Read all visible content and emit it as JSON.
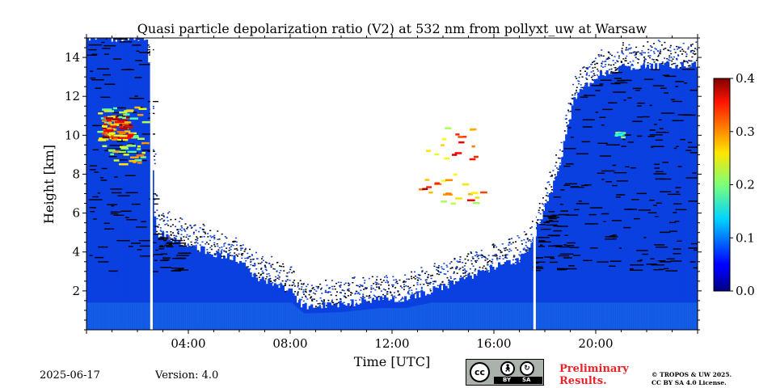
{
  "chart_data": {
    "type": "heatmap",
    "title": "Quasi particle depolarization ratio (V2) at 532 nm from pollyxt_uw at Warsaw",
    "xlabel": "Time [UTC]",
    "ylabel": "Height [km]",
    "xlim_hours": [
      0,
      24
    ],
    "ylim_km": [
      0,
      15
    ],
    "x_ticks": [
      "04:00",
      "08:00",
      "12:00",
      "16:00",
      "20:00"
    ],
    "x_tick_hours": [
      4,
      8,
      12,
      16,
      20
    ],
    "y_ticks": [
      "2",
      "4",
      "6",
      "8",
      "10",
      "12",
      "14"
    ],
    "y_tick_values": [
      2,
      4,
      6,
      8,
      10,
      12,
      14
    ],
    "colorbar": {
      "min": 0.0,
      "max": 0.4,
      "ticks": [
        "0.0",
        "0.1",
        "0.2",
        "0.3",
        "0.4"
      ],
      "tick_values": [
        0.0,
        0.1,
        0.2,
        0.3,
        0.4
      ],
      "colormap": "jet"
    },
    "data_gaps_hours": [
      [
        2.5,
        2.6
      ],
      [
        17.55,
        17.65
      ]
    ],
    "signal_top_km": [
      [
        0.0,
        15.0
      ],
      [
        1.0,
        15.0
      ],
      [
        2.4,
        15.0
      ],
      [
        2.7,
        5.0
      ],
      [
        4.0,
        4.3
      ],
      [
        6.0,
        3.6
      ],
      [
        6.5,
        2.8
      ],
      [
        8.0,
        2.0
      ],
      [
        8.5,
        1.2
      ],
      [
        10.0,
        1.3
      ],
      [
        11.5,
        1.6
      ],
      [
        12.5,
        1.6
      ],
      [
        14.0,
        2.2
      ],
      [
        15.5,
        3.0
      ],
      [
        17.0,
        3.6
      ],
      [
        17.5,
        4.5
      ],
      [
        18.5,
        8.0
      ],
      [
        19.0,
        11.0
      ],
      [
        19.2,
        12.0
      ],
      [
        20.0,
        13.0
      ],
      [
        21.0,
        13.5
      ],
      [
        23.9,
        13.6
      ],
      [
        24.0,
        13.6
      ]
    ],
    "features": [
      {
        "kind": "cirrus",
        "t0": 0.4,
        "t1": 2.2,
        "h0": 8.5,
        "h1": 11.5,
        "value": 0.28
      },
      {
        "kind": "cirrus-core",
        "t0": 0.6,
        "t1": 1.6,
        "h0": 9.8,
        "h1": 11.0,
        "value": 0.38
      },
      {
        "kind": "cloud-patch",
        "t0": 20.7,
        "t1": 21.0,
        "h0": 9.9,
        "h1": 10.4,
        "value": 0.2
      },
      {
        "kind": "scattered-high",
        "t0": 13.0,
        "t1": 15.5,
        "h0": 6.5,
        "h1": 10.5,
        "value": 0.35
      }
    ]
  },
  "footer": {
    "date": "2025-06-17",
    "version": "Version: 4.0",
    "preliminary_line1": "Preliminary",
    "preliminary_line2": "Results.",
    "copyright_line1": "© TROPOS & UW 2025.",
    "copyright_line2": "CC BY SA 4.0 License.",
    "license_badge": {
      "cc": "cc",
      "by": "BY",
      "sa": "SA"
    }
  },
  "colors": {
    "background_signal": "#0a3fe0",
    "dark_streaks": "#000000"
  }
}
